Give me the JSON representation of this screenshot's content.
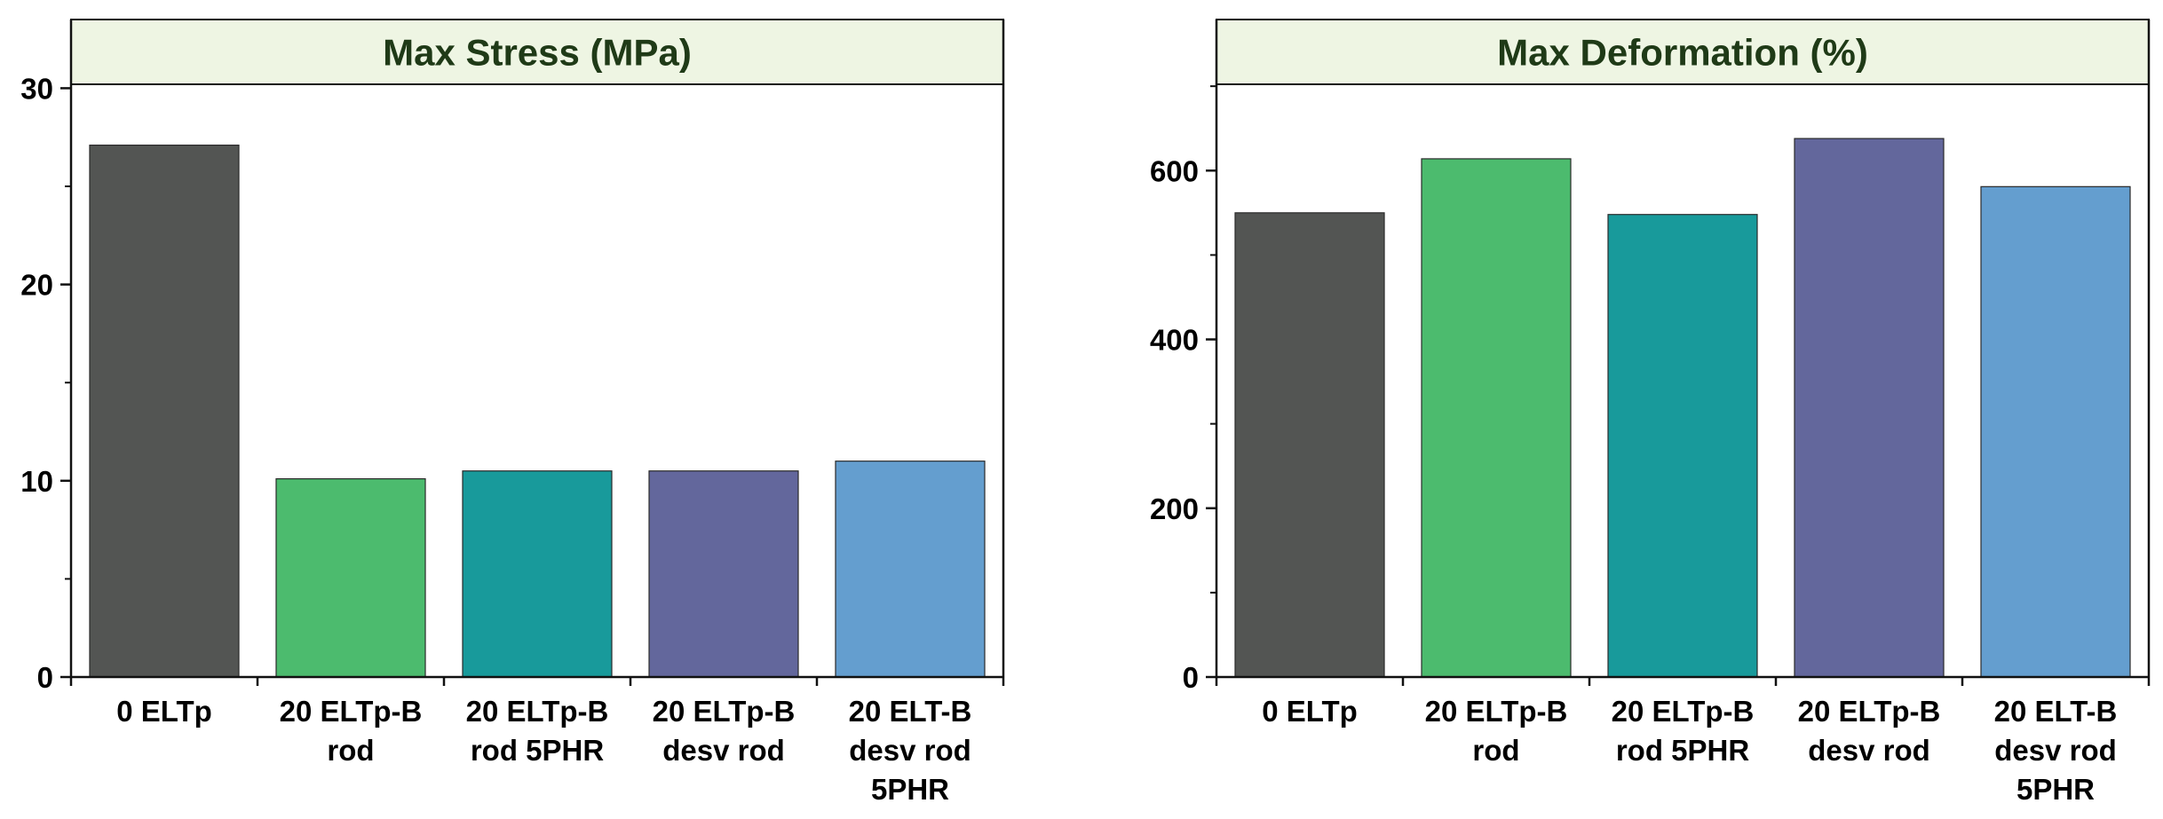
{
  "colors": {
    "title_band": "#EEF5E3",
    "title_text": "#1F3A17",
    "axis": "#111111",
    "bars": [
      "#535553",
      "#4CBB6E",
      "#189A9B",
      "#63679C",
      "#649ECF"
    ]
  },
  "chart_data": [
    {
      "type": "bar",
      "title": "Max Stress (MPa)",
      "xlabel": "",
      "ylabel": "",
      "categories": [
        [
          "0 ELTp"
        ],
        [
          "20 ELTp-B",
          "rod"
        ],
        [
          "20 ELTp-B",
          "rod 5PHR"
        ],
        [
          "20 ELTp-B",
          "desv rod"
        ],
        [
          "20 ELT-B",
          "desv rod",
          "5PHR"
        ]
      ],
      "values": [
        27.1,
        10.1,
        10.5,
        10.5,
        11.0
      ],
      "ylim": [
        0,
        33.5
      ],
      "yticks": [
        0,
        10,
        20,
        30
      ],
      "yminor": [
        5,
        15,
        25
      ],
      "grid": false,
      "legend": "none"
    },
    {
      "type": "bar",
      "title": "Max Deformation (%)",
      "xlabel": "",
      "ylabel": "",
      "categories": [
        [
          "0 ELTp"
        ],
        [
          "20 ELTp-B",
          "rod"
        ],
        [
          "20 ELTp-B",
          "rod 5PHR"
        ],
        [
          "20 ELTp-B",
          "desv rod"
        ],
        [
          "20 ELT-B",
          "desv rod",
          "5PHR"
        ]
      ],
      "values": [
        550,
        614,
        548,
        638,
        581
      ],
      "ylim": [
        0,
        779
      ],
      "yticks": [
        0,
        200,
        400,
        600
      ],
      "yminor": [
        100,
        300,
        500,
        700
      ],
      "grid": false,
      "legend": "none"
    }
  ]
}
